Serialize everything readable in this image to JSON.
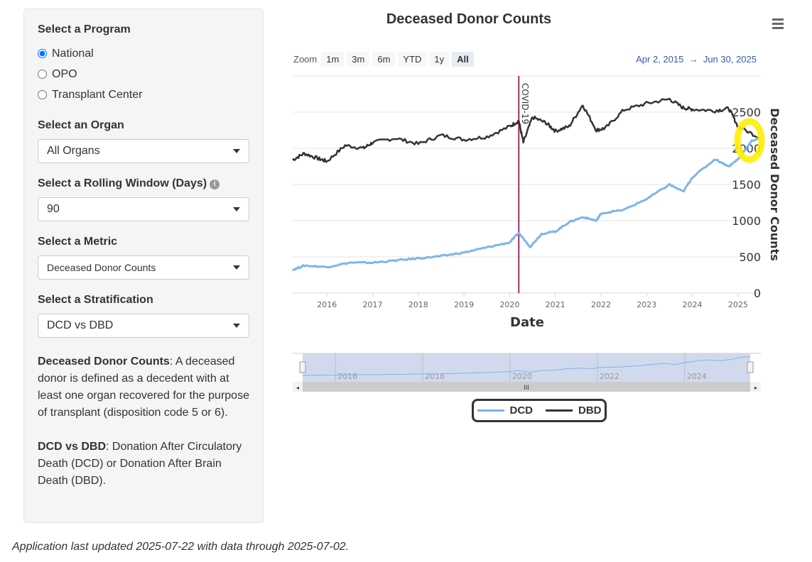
{
  "sidebar": {
    "program_label": "Select a Program",
    "programs": [
      "National",
      "OPO",
      "Transplant Center"
    ],
    "selected_program": "National",
    "organ_label": "Select an Organ",
    "organ_value": "All Organs",
    "window_label": "Select a Rolling Window (Days)",
    "window_value": "90",
    "info_icon": "i",
    "metric_label": "Select a Metric",
    "metric_value": "Deceased Donor Counts",
    "strat_label": "Select a Stratification",
    "strat_value": "DCD vs DBD",
    "desc1_term": "Deceased Donor Counts",
    "desc1_text": ": A deceased donor is defined as a decedent with at least one organ recovered for the purpose of transplant (disposition code 5 or 6).",
    "desc2_term": "DCD vs DBD",
    "desc2_text": ": Donation After Circulatory Death (DCD) or Donation After Brain Death (DBD)."
  },
  "footer": "Application last updated 2025-07-22 with data through 2025-07-02.",
  "toolbar": {
    "zoom_label": "Zoom",
    "buttons": [
      "1m",
      "3m",
      "6m",
      "YTD",
      "1y",
      "All"
    ],
    "active": "All",
    "range_from": "Apr 2, 2015",
    "range_arrow": "→",
    "range_to": "Jun 30, 2025"
  },
  "colors": {
    "DCD": "#7cb5ec",
    "DBD": "#333333",
    "covid": "#a0305a",
    "highlight": "#ffee00"
  },
  "chart_data": {
    "type": "line",
    "title": "Deceased Donor Counts",
    "xlabel": "Date",
    "ylabel": "Deceased Donor Counts",
    "xlim": [
      2015.25,
      2025.5
    ],
    "ylim": [
      0,
      3000
    ],
    "yticks": [
      0,
      500,
      1000,
      1500,
      2000,
      2500
    ],
    "xticks": [
      "2016",
      "2017",
      "2018",
      "2019",
      "2020",
      "2021",
      "2022",
      "2023",
      "2024",
      "2025"
    ],
    "navigator_ticks": [
      "2016",
      "2018",
      "2020",
      "2022",
      "2024"
    ],
    "annotation": {
      "label": "COVID-19",
      "x": 2020.2
    },
    "legend": "bottom",
    "grid": true,
    "series": [
      {
        "name": "DCD",
        "x": [
          2015.25,
          2015.5,
          2016,
          2016.5,
          2017,
          2017.5,
          2018,
          2018.5,
          2019,
          2019.5,
          2020,
          2020.2,
          2020.45,
          2020.7,
          2021,
          2021.3,
          2021.6,
          2021.9,
          2022,
          2022.5,
          2023,
          2023.5,
          2023.8,
          2024,
          2024.5,
          2024.8,
          2025,
          2025.3,
          2025.5
        ],
        "y": [
          320,
          380,
          360,
          420,
          420,
          450,
          480,
          510,
          560,
          630,
          700,
          830,
          640,
          820,
          850,
          980,
          1050,
          1000,
          1100,
          1150,
          1300,
          1500,
          1400,
          1600,
          1850,
          1750,
          1850,
          2100,
          2150
        ]
      },
      {
        "name": "DBD",
        "x": [
          2015.25,
          2015.5,
          2015.8,
          2016,
          2016.4,
          2016.8,
          2017,
          2017.5,
          2018,
          2018.5,
          2019,
          2019.5,
          2020,
          2020.2,
          2020.3,
          2020.5,
          2020.8,
          2021,
          2021.3,
          2021.6,
          2021.9,
          2022.1,
          2022.5,
          2023,
          2023.5,
          2023.8,
          2024,
          2024.5,
          2024.8,
          2025,
          2025.5
        ],
        "y": [
          1840,
          1930,
          1860,
          1820,
          2040,
          2000,
          2080,
          2140,
          2060,
          2180,
          2120,
          2160,
          2300,
          2380,
          2080,
          2430,
          2350,
          2240,
          2300,
          2600,
          2250,
          2280,
          2530,
          2620,
          2680,
          2560,
          2540,
          2520,
          2550,
          2300,
          2140
        ]
      }
    ]
  }
}
